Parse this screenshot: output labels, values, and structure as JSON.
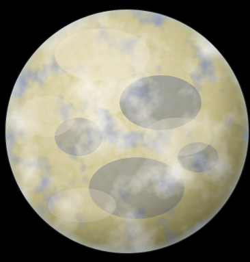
{
  "scene": {
    "subject": "planet-icon",
    "colors": {
      "space": "#000000",
      "cloud": "#e6dcc0",
      "cloud_bright": "#f2ecd8",
      "land": "#a9a152",
      "land_dark": "#7f7a38",
      "ocean": "#4a5a8c",
      "ocean_deep": "#2f3c6e",
      "atmosphere_rim": "#9fb7d0"
    }
  }
}
